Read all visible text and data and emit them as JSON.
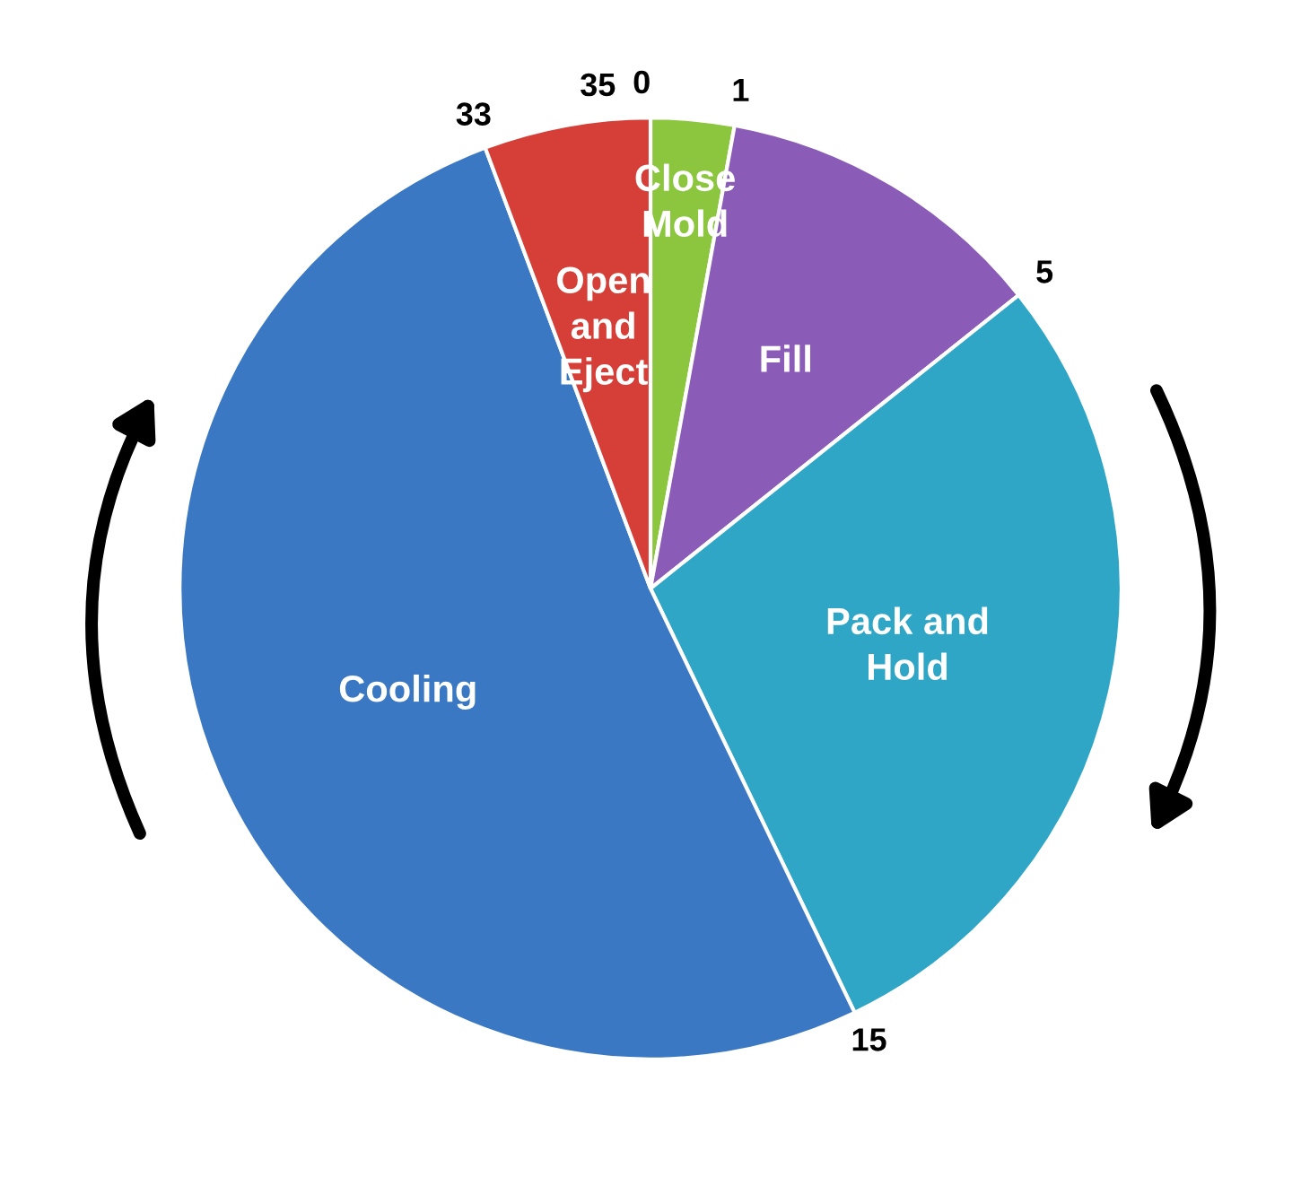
{
  "chart_data": {
    "type": "pie",
    "categories": [
      "Close\nMold",
      "Fill",
      "Pack and\nHold",
      "Cooling",
      "Open\nand\nEject"
    ],
    "values": [
      2.86,
      11.43,
      28.57,
      51.43,
      5.71
    ],
    "colors": [
      "#8cc63f",
      "#8a5cb8",
      "#2fa6c6",
      "#3b78c4",
      "#d63f38"
    ],
    "annotations": [
      "0",
      "1",
      "5",
      "15",
      "33",
      "35"
    ],
    "legend": false
  }
}
